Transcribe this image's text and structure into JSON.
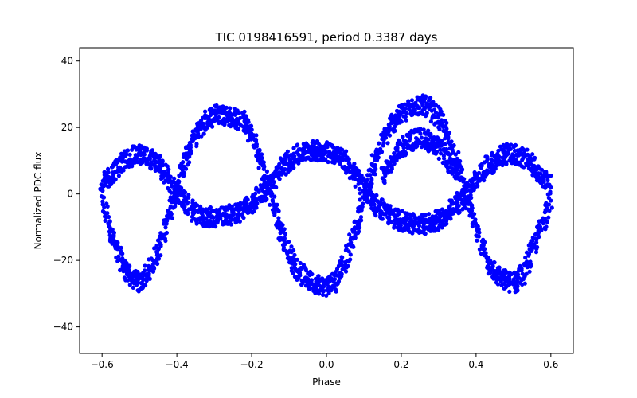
{
  "chart_data": {
    "type": "scatter",
    "title": "TIC 0198416591, period 0.3387 days",
    "xlabel": "Phase",
    "ylabel": "Normalized PDC flux",
    "xlim": [
      -0.66,
      0.66
    ],
    "ylim": [
      -48,
      44
    ],
    "xticks": [
      {
        "value": -0.6,
        "label": "−0.6"
      },
      {
        "value": -0.4,
        "label": "−0.4"
      },
      {
        "value": -0.2,
        "label": "−0.2"
      },
      {
        "value": 0.0,
        "label": "0.0"
      },
      {
        "value": 0.2,
        "label": "0.2"
      },
      {
        "value": 0.4,
        "label": "0.4"
      },
      {
        "value": 0.6,
        "label": "0.6"
      }
    ],
    "yticks": [
      {
        "value": -40,
        "label": "−40"
      },
      {
        "value": -20,
        "label": "−20"
      },
      {
        "value": 0,
        "label": "0"
      },
      {
        "value": 20,
        "label": "20"
      },
      {
        "value": 40,
        "label": "40"
      }
    ],
    "grid": false,
    "legend": "none",
    "marker_color": "#0000ff",
    "series": [
      {
        "x": [
          -0.6,
          -0.575,
          -0.55,
          -0.525,
          -0.5,
          -0.475,
          -0.45,
          -0.425,
          -0.4,
          -0.375,
          -0.35,
          -0.325,
          -0.3,
          -0.275,
          -0.25,
          -0.225,
          -0.2,
          -0.175,
          -0.15,
          -0.125,
          -0.1,
          -0.075,
          -0.05,
          -0.025,
          0.0,
          0.025,
          0.05,
          0.075,
          0.1,
          0.125,
          0.15,
          0.175,
          0.2,
          0.225,
          0.25,
          0.275,
          0.3,
          0.325,
          0.35,
          0.375,
          0.4,
          0.425,
          0.45,
          0.475,
          0.5,
          0.525,
          0.55,
          0.575,
          0.6
        ],
        "y": [
          -2,
          -12,
          -20,
          -25,
          -27,
          -24,
          -17,
          -8,
          2,
          11,
          18,
          22,
          24,
          24,
          23,
          22,
          18,
          10,
          0,
          -10,
          -18,
          -23,
          -26,
          -27,
          -28,
          -26,
          -20,
          -12,
          -2,
          8,
          16,
          21,
          24,
          26,
          27,
          26,
          23,
          17,
          9,
          -1,
          -11,
          -19,
          -24,
          -26,
          -27,
          -24,
          -17,
          -9,
          -2
        ]
      },
      {
        "x": [
          -0.6,
          -0.575,
          -0.55,
          -0.525,
          -0.5,
          -0.475,
          -0.45,
          -0.425,
          -0.4,
          -0.375,
          -0.35,
          -0.325,
          -0.3,
          -0.275,
          -0.25,
          -0.225,
          -0.2,
          -0.175,
          -0.15,
          -0.125,
          -0.1,
          -0.075,
          -0.05,
          -0.025,
          0.0,
          0.025,
          0.05,
          0.075,
          0.1,
          0.125,
          0.15,
          0.175,
          0.2,
          0.225,
          0.25,
          0.275,
          0.3,
          0.325,
          0.35,
          0.375,
          0.4,
          0.425,
          0.45,
          0.475,
          0.5,
          0.525,
          0.55,
          0.575,
          0.6
        ],
        "y": [
          2,
          6,
          9,
          11,
          12,
          11,
          9,
          5,
          0,
          -3,
          -6,
          -7,
          -7,
          -7,
          -6,
          -5,
          -3,
          0,
          3,
          7,
          10,
          12,
          13,
          13,
          13,
          12,
          10,
          6,
          2,
          -2,
          -5,
          -7,
          -8,
          -9,
          -9,
          -9,
          -8,
          -6,
          -3,
          0,
          4,
          8,
          10,
          12,
          12,
          11,
          9,
          5,
          2
        ]
      },
      {
        "x": [
          0.15,
          0.175,
          0.2,
          0.225,
          0.25,
          0.275,
          0.3,
          0.325,
          0.35
        ],
        "y": [
          5,
          10,
          14,
          16,
          17,
          16,
          14,
          10,
          5
        ]
      }
    ]
  }
}
